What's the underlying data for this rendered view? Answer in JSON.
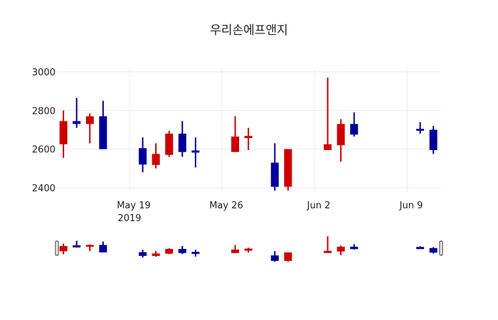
{
  "chart_data": {
    "type": "candlestick",
    "title": "우리손에프앤지",
    "xlabel": "",
    "ylabel": "",
    "ylim": [
      2355,
      3020
    ],
    "yticks": [
      2400,
      2600,
      2800,
      3000
    ],
    "xticks": [
      {
        "date": "2019-05-19",
        "label": "May 19",
        "sublabel": "2019"
      },
      {
        "date": "2019-05-26",
        "label": "May 26",
        "sublabel": ""
      },
      {
        "date": "2019-06-02",
        "label": "Jun 2",
        "sublabel": ""
      },
      {
        "date": "2019-06-09",
        "label": "Jun 9",
        "sublabel": ""
      }
    ],
    "xrange": [
      "2019-05-13T12:00",
      "2019-06-11T12:00"
    ],
    "grid": true,
    "increasing_color": "#cc0000",
    "decreasing_color": "#000099",
    "rangeslider": true,
    "x": [
      "2019-05-14",
      "2019-05-15",
      "2019-05-16",
      "2019-05-17",
      "2019-05-20",
      "2019-05-21",
      "2019-05-22",
      "2019-05-23",
      "2019-05-24",
      "2019-05-27",
      "2019-05-28",
      "2019-05-30",
      "2019-05-31",
      "2019-06-03",
      "2019-06-04",
      "2019-06-05",
      "2019-06-10",
      "2019-06-11"
    ],
    "open": [
      2625,
      2745,
      2730,
      2770,
      2605,
      2518,
      2570,
      2680,
      2590,
      2585,
      2660,
      2530,
      2405,
      2595,
      2620,
      2730,
      2705,
      2700
    ],
    "high": [
      2800,
      2865,
      2785,
      2850,
      2660,
      2630,
      2695,
      2745,
      2660,
      2770,
      2710,
      2630,
      2600,
      2970,
      2755,
      2790,
      2740,
      2720
    ],
    "low": [
      2555,
      2710,
      2630,
      2600,
      2480,
      2500,
      2560,
      2560,
      2505,
      2585,
      2595,
      2385,
      2385,
      2595,
      2535,
      2665,
      2680,
      2575
    ],
    "close": [
      2745,
      2730,
      2770,
      2600,
      2520,
      2575,
      2680,
      2585,
      2585,
      2665,
      2665,
      2405,
      2600,
      2625,
      2730,
      2675,
      2695,
      2595
    ]
  }
}
